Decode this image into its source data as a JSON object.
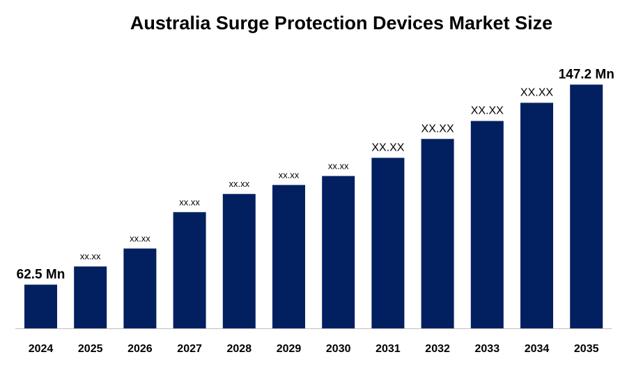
{
  "chart_data": {
    "type": "bar",
    "title": "Australia Surge Protection Devices Market Size",
    "xlabel": "",
    "ylabel": "",
    "categories": [
      "2024",
      "2025",
      "2026",
      "2027",
      "2028",
      "2029",
      "2030",
      "2031",
      "2032",
      "2033",
      "2034",
      "2035"
    ],
    "values": [
      62.5,
      70.2,
      77.8,
      93.2,
      100.9,
      104.7,
      108.5,
      116.2,
      124.2,
      131.8,
      139.5,
      147.2
    ],
    "data_labels": [
      "62.5 Mn",
      "xx.xx",
      "xx.xx",
      "xx.xx",
      "xx.xx",
      "xx.xx",
      "xx.xx",
      "XX.XX",
      "XX.XX",
      "XX.XX",
      "XX.XX",
      "147.2 Mn"
    ],
    "ylim": [
      44,
      165
    ],
    "grid": false,
    "legend": "none",
    "bar_color": "#022060",
    "axis_color": "#bfbfbf"
  }
}
